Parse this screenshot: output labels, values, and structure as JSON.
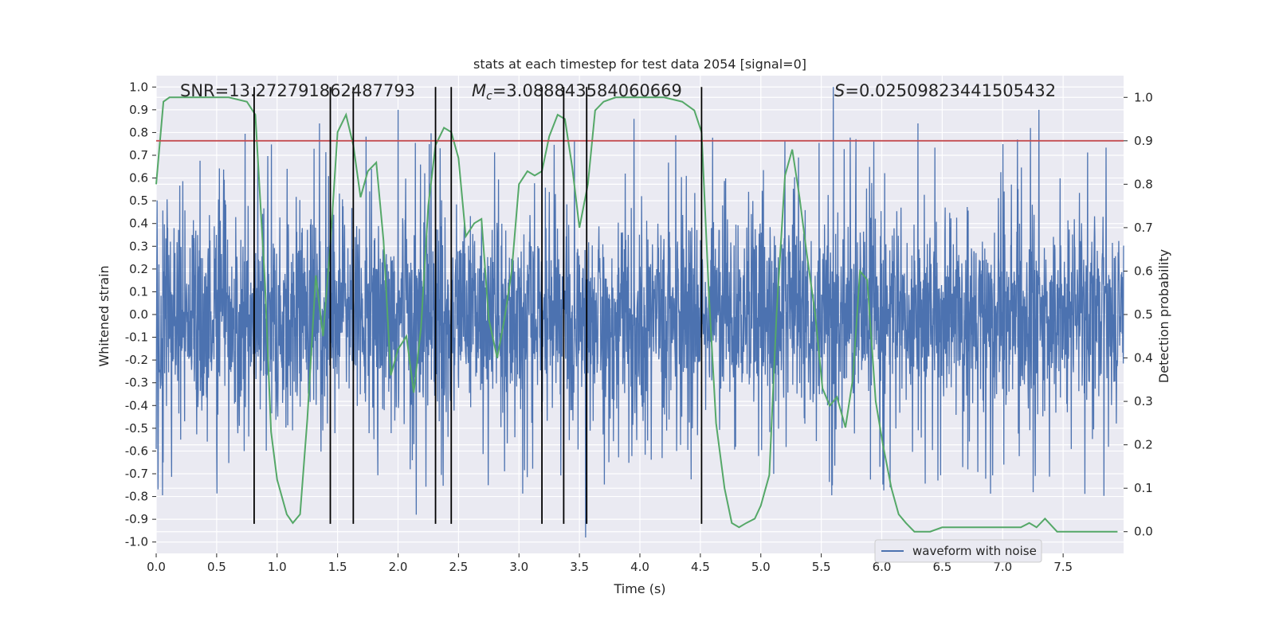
{
  "chart_data": {
    "type": "line",
    "title": "stats at each timestep for test data 2054 [signal=0]",
    "xlabel": "Time (s)",
    "ylabel_left": "Whitened strain",
    "ylabel_right": "Detection probability",
    "xlim": [
      0,
      8
    ],
    "ylim_left": [
      -1.05,
      1.05
    ],
    "ylim_right": [
      -0.05,
      1.05
    ],
    "grid": true,
    "legend_position": "lower-right",
    "x_ticks": [
      "0.0",
      "0.5",
      "1.0",
      "1.5",
      "2.0",
      "2.5",
      "3.0",
      "3.5",
      "4.0",
      "4.5",
      "5.0",
      "5.5",
      "6.0",
      "6.5",
      "7.0",
      "7.5"
    ],
    "y_left_ticks": [
      "-1.0",
      "-0.9",
      "-0.8",
      "-0.7",
      "-0.6",
      "-0.5",
      "-0.4",
      "-0.3",
      "-0.2",
      "-0.1",
      "0.0",
      "0.1",
      "0.2",
      "0.3",
      "0.4",
      "0.5",
      "0.6",
      "0.7",
      "0.8",
      "0.9",
      "1.0"
    ],
    "y_right_ticks": [
      "0.0",
      "0.1",
      "0.2",
      "0.3",
      "0.4",
      "0.5",
      "0.6",
      "0.7",
      "0.8",
      "0.9",
      "1.0"
    ],
    "annotations": {
      "snr": "SNR=13.272791862487793",
      "mc_symbol": "M",
      "mc_sub": "c",
      "mc_value": "=3.088843584060669",
      "s_symbol": "S",
      "s_value": "=0.02509823441505432"
    },
    "threshold": {
      "value": 0.9,
      "axis": "right",
      "color": "#c44e52"
    },
    "vertical_lines": [
      0.81,
      1.44,
      1.63,
      2.31,
      2.44,
      3.19,
      3.37,
      3.56,
      4.51
    ],
    "series": [
      {
        "name": "waveform with noise",
        "axis": "left",
        "color": "#4c72b0",
        "kind": "noise",
        "typical_amplitude": 0.35,
        "peak_amplitude": 1.0,
        "spikes": [
          {
            "x": 2.0,
            "y": 0.9
          },
          {
            "x": 2.15,
            "y": -0.88
          },
          {
            "x": 3.55,
            "y": -0.98
          },
          {
            "x": 5.6,
            "y": 1.0
          },
          {
            "x": 7.3,
            "y": 0.9
          },
          {
            "x": 7.23,
            "y": 0.82
          },
          {
            "x": 6.3,
            "y": 0.84
          },
          {
            "x": 3.95,
            "y": 0.86
          },
          {
            "x": 1.35,
            "y": 0.84
          }
        ]
      },
      {
        "name": "detection probability",
        "axis": "right",
        "color": "#55a868",
        "x": [
          0.0,
          0.06,
          0.11,
          0.2,
          0.4,
          0.6,
          0.75,
          0.82,
          0.9,
          0.95,
          1.0,
          1.03,
          1.08,
          1.13,
          1.19,
          1.25,
          1.32,
          1.38,
          1.44,
          1.5,
          1.57,
          1.63,
          1.69,
          1.75,
          1.82,
          1.88,
          1.94,
          2.0,
          2.07,
          2.13,
          2.19,
          2.25,
          2.31,
          2.38,
          2.44,
          2.5,
          2.56,
          2.63,
          2.69,
          2.75,
          2.82,
          2.88,
          2.94,
          3.0,
          3.07,
          3.13,
          3.19,
          3.25,
          3.32,
          3.38,
          3.44,
          3.5,
          3.57,
          3.63,
          3.7,
          3.8,
          4.0,
          4.2,
          4.35,
          4.45,
          4.51,
          4.57,
          4.63,
          4.7,
          4.76,
          4.82,
          4.88,
          4.95,
          5.0,
          5.07,
          5.13,
          5.2,
          5.26,
          5.32,
          5.38,
          5.45,
          5.51,
          5.57,
          5.63,
          5.7,
          5.76,
          5.82,
          5.88,
          5.95,
          6.01,
          6.08,
          6.14,
          6.2,
          6.27,
          6.4,
          6.5,
          6.6,
          6.7,
          6.8,
          6.9,
          7.0,
          7.08,
          7.15,
          7.22,
          7.28,
          7.35,
          7.45,
          7.6,
          7.8,
          7.95
        ],
        "y": [
          0.8,
          0.99,
          1.0,
          1.0,
          1.0,
          1.0,
          0.99,
          0.96,
          0.57,
          0.23,
          0.12,
          0.09,
          0.04,
          0.02,
          0.04,
          0.26,
          0.59,
          0.45,
          0.66,
          0.92,
          0.96,
          0.89,
          0.77,
          0.83,
          0.85,
          0.67,
          0.36,
          0.42,
          0.45,
          0.32,
          0.47,
          0.75,
          0.89,
          0.93,
          0.92,
          0.86,
          0.68,
          0.71,
          0.72,
          0.49,
          0.4,
          0.49,
          0.6,
          0.8,
          0.83,
          0.82,
          0.83,
          0.91,
          0.96,
          0.95,
          0.84,
          0.7,
          0.8,
          0.97,
          0.99,
          1.0,
          1.0,
          1.0,
          0.99,
          0.97,
          0.92,
          0.55,
          0.25,
          0.1,
          0.02,
          0.01,
          0.02,
          0.03,
          0.06,
          0.13,
          0.5,
          0.82,
          0.88,
          0.77,
          0.64,
          0.5,
          0.33,
          0.29,
          0.31,
          0.24,
          0.35,
          0.6,
          0.58,
          0.3,
          0.2,
          0.1,
          0.04,
          0.02,
          0.0,
          0.0,
          0.01,
          0.01,
          0.01,
          0.01,
          0.01,
          0.01,
          0.01,
          0.01,
          0.02,
          0.01,
          0.03,
          0.0,
          0.0,
          0.0,
          0.0
        ]
      }
    ]
  }
}
